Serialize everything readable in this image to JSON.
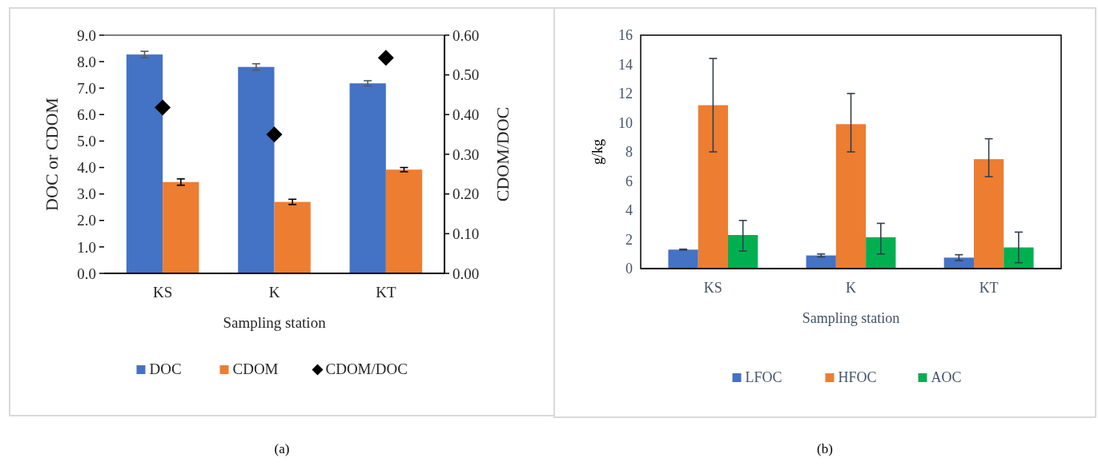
{
  "chart_data": [
    {
      "type": "bar",
      "xlabel": "Sampling station",
      "ylabel": "DOC or CDOM",
      "y2label": "CDOM/DOC",
      "categories": [
        "KS",
        "K",
        "KT"
      ],
      "series": [
        {
          "name": "DOC",
          "color": "#4472c4",
          "values": [
            8.27,
            7.8,
            7.18
          ],
          "errors": [
            0.12,
            0.12,
            0.1
          ]
        },
        {
          "name": "CDOM",
          "color": "#ed7d31",
          "values": [
            3.45,
            2.7,
            3.92
          ],
          "errors": [
            0.12,
            0.1,
            0.08
          ]
        },
        {
          "name": "CDOM/DOC",
          "type": "scatter",
          "axis": "y2",
          "marker": "diamond",
          "color": "#000000",
          "values": [
            0.418,
            0.35,
            0.543
          ]
        }
      ],
      "ylim": [
        0,
        9
      ],
      "yticks": [
        {
          "value": 0,
          "label": "0.0"
        },
        {
          "value": 1,
          "label": "1.0"
        },
        {
          "value": 2,
          "label": "2.0"
        },
        {
          "value": 3,
          "label": "3.0"
        },
        {
          "value": 4,
          "label": "4.0"
        },
        {
          "value": 5,
          "label": "5.0"
        },
        {
          "value": 6,
          "label": "6.0"
        },
        {
          "value": 7,
          "label": "7.0"
        },
        {
          "value": 8,
          "label": "8.0"
        },
        {
          "value": 9,
          "label": "9.0"
        }
      ],
      "y2lim": [
        0,
        0.6
      ],
      "y2ticks": [
        {
          "value": 0,
          "label": "0.00"
        },
        {
          "value": 0.1,
          "label": "0.10"
        },
        {
          "value": 0.2,
          "label": "0.20"
        },
        {
          "value": 0.3,
          "label": "0.30"
        },
        {
          "value": 0.4,
          "label": "0.40"
        },
        {
          "value": 0.5,
          "label": "0.50"
        },
        {
          "value": 0.6,
          "label": "0.60"
        }
      ],
      "legend": "bottom",
      "annotations": [
        "(a)"
      ]
    },
    {
      "type": "bar",
      "xlabel": "Sampling station",
      "ylabel": "g/kg",
      "categories": [
        "KS",
        "K",
        "KT"
      ],
      "series": [
        {
          "name": "LFOC",
          "color": "#4472c4",
          "values": [
            1.3,
            0.9,
            0.75
          ],
          "errors": [
            [
              1.27,
              1.33
            ],
            [
              0.8,
              1.0
            ],
            [
              0.55,
              0.95
            ]
          ]
        },
        {
          "name": "HFOC",
          "color": "#ed7d31",
          "values": [
            11.2,
            9.9,
            7.5
          ],
          "errors": [
            [
              8.0,
              14.4
            ],
            [
              8.0,
              12.0
            ],
            [
              6.3,
              8.9
            ]
          ]
        },
        {
          "name": "AOC",
          "color": "#00b050",
          "values": [
            2.3,
            2.15,
            1.45
          ],
          "errors": [
            [
              1.2,
              3.3
            ],
            [
              1.0,
              3.1
            ],
            [
              0.4,
              2.5
            ]
          ]
        }
      ],
      "ylim": [
        0,
        16
      ],
      "yticks": [
        0,
        2,
        4,
        6,
        8,
        10,
        12,
        14,
        16
      ],
      "legend": "bottom",
      "annotations": [
        "(b)"
      ]
    }
  ]
}
